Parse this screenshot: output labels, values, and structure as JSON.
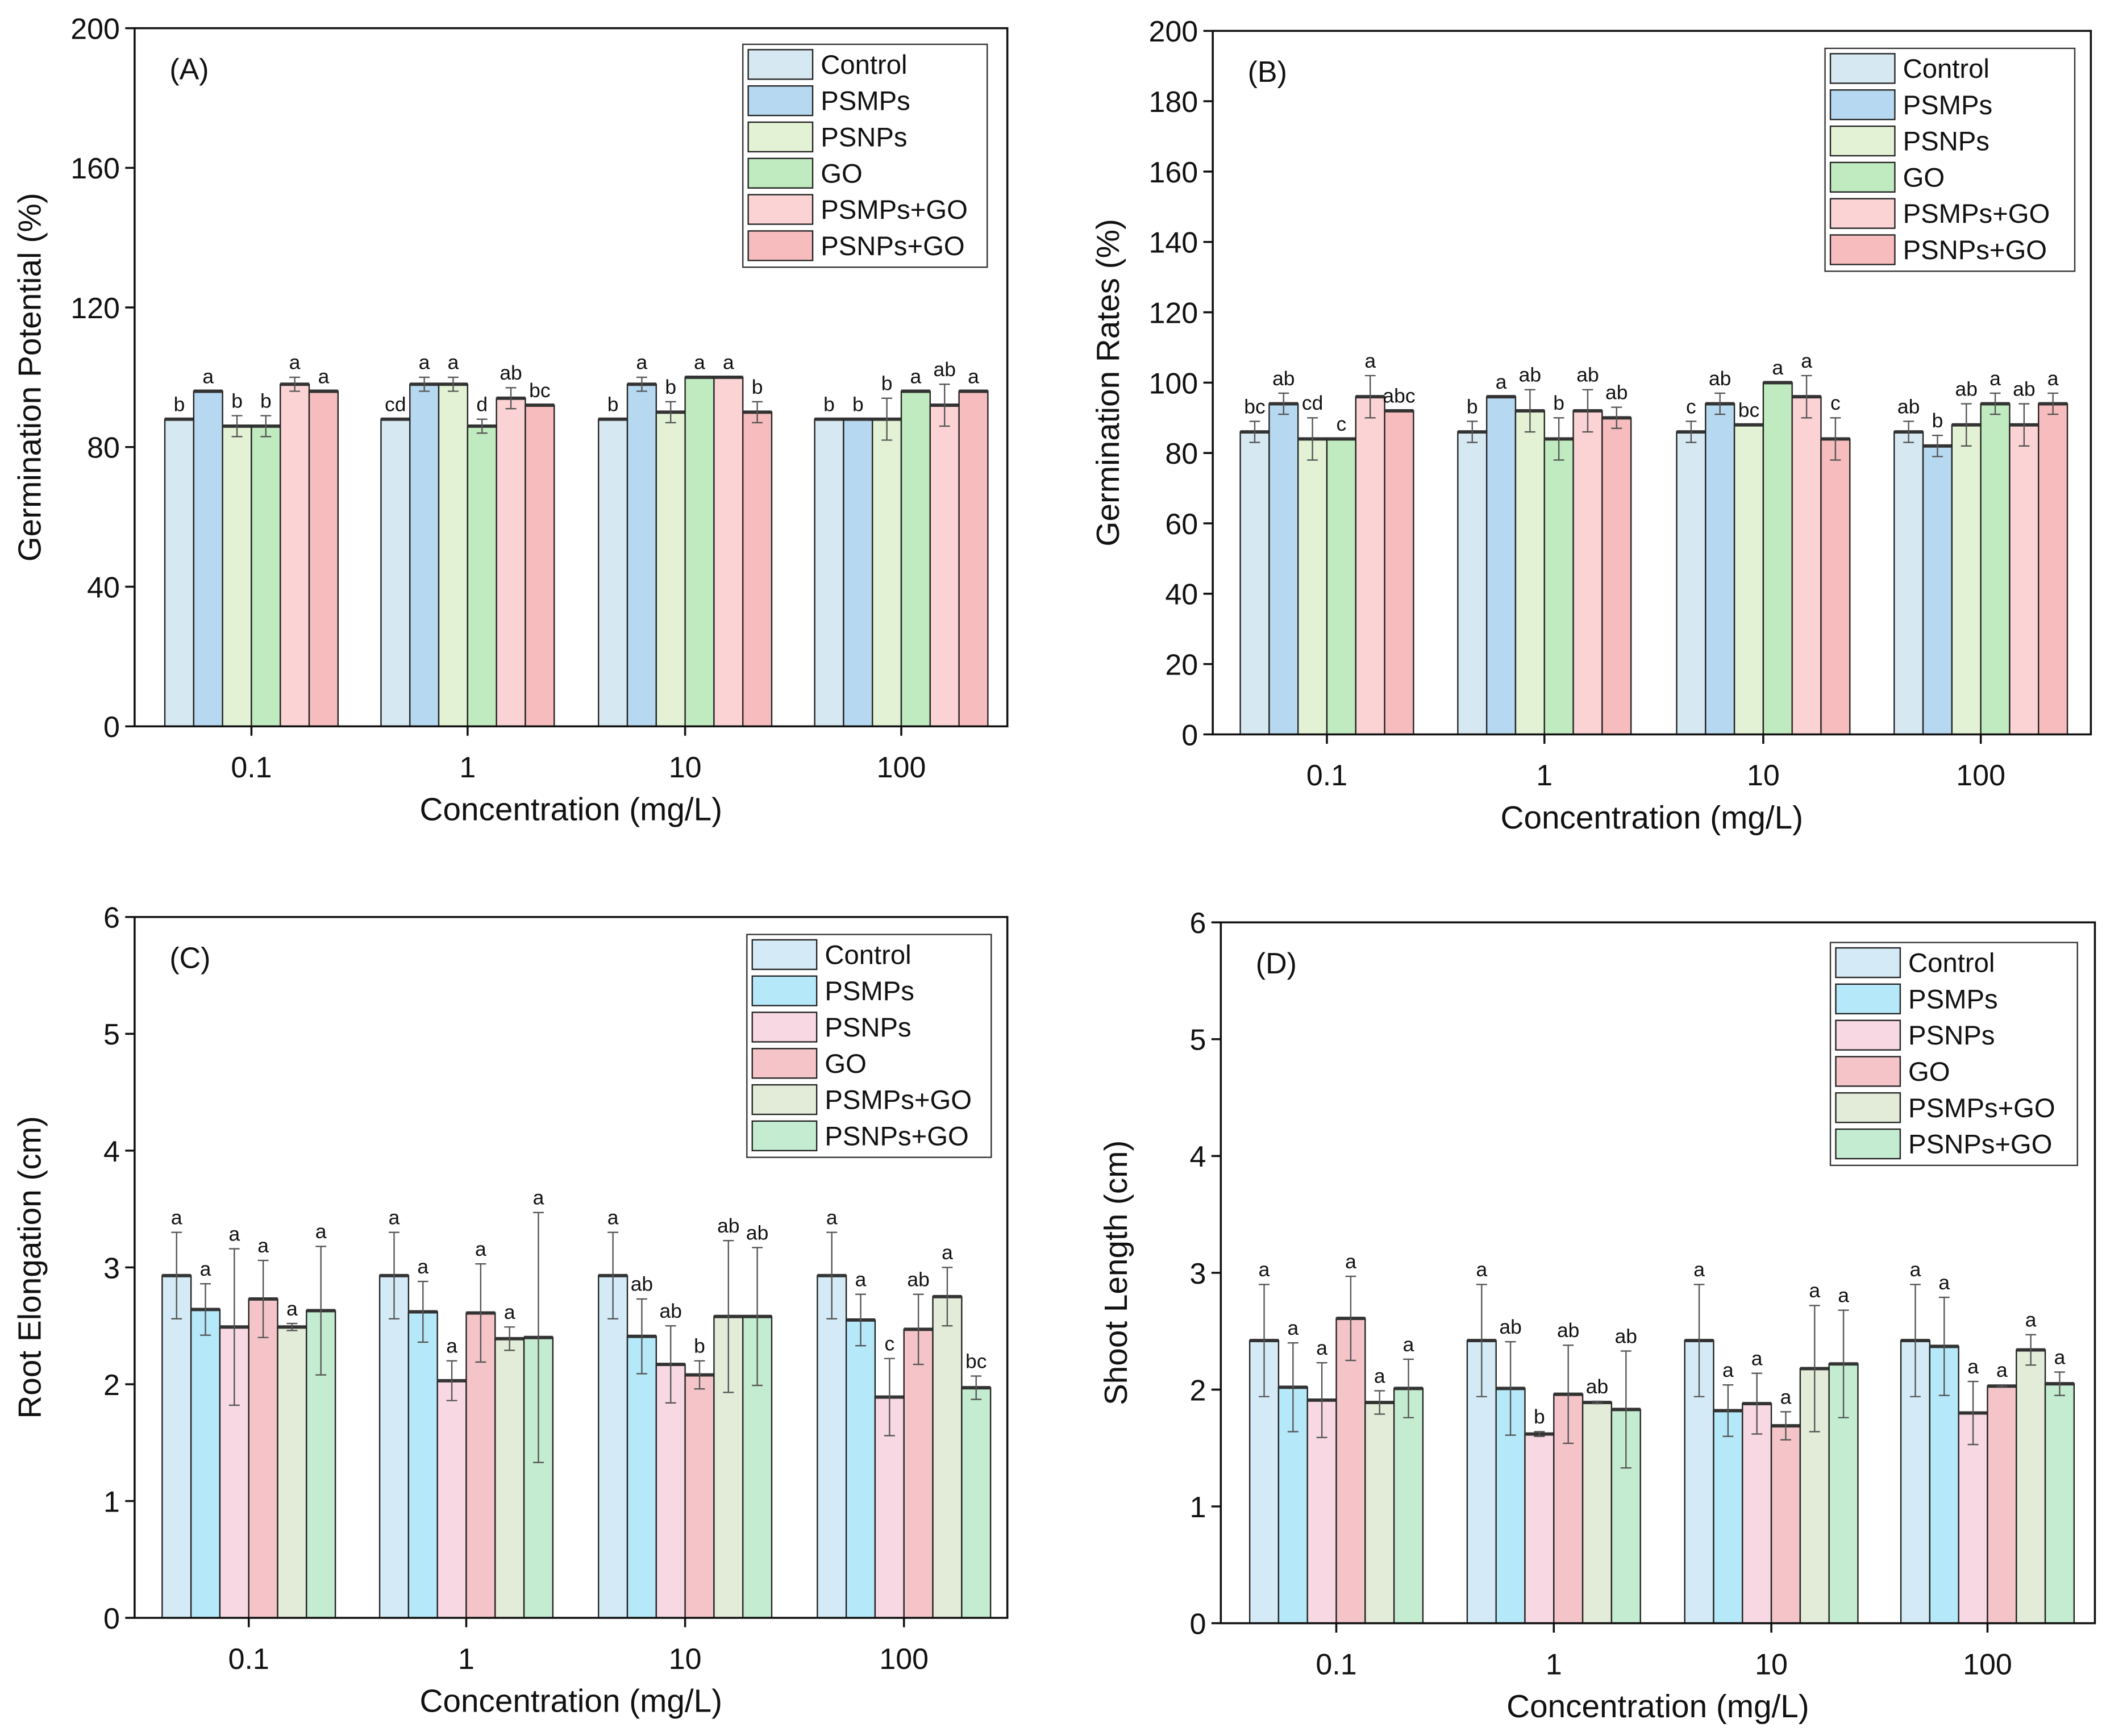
{
  "chart_data": [
    {
      "type": "bar",
      "panel_label": "(A)",
      "xlabel": "Concentration (mg/L)",
      "ylabel": "Germination Potential (%)",
      "ylim": [
        0,
        200
      ],
      "yticks": [
        0,
        40,
        80,
        120,
        160,
        200
      ],
      "categories": [
        "0.1",
        "1",
        "10",
        "100"
      ],
      "legend_position": "top-right",
      "series": [
        {
          "name": "Control",
          "color": "#d6e8f2",
          "values": [
            88,
            88,
            88,
            88
          ],
          "errors": [
            0,
            0,
            0,
            0
          ],
          "letters": [
            "b",
            "cd",
            "b",
            "b"
          ]
        },
        {
          "name": "PSMPs",
          "color": "#b6d8f0",
          "values": [
            96,
            98,
            98,
            88
          ],
          "errors": [
            0,
            2,
            2,
            0
          ],
          "letters": [
            "a",
            "a",
            "a",
            "b"
          ]
        },
        {
          "name": "PSNPs",
          "color": "#e3f2d4",
          "values": [
            86,
            98,
            90,
            88
          ],
          "errors": [
            3,
            2,
            3,
            6
          ],
          "letters": [
            "b",
            "a",
            "b",
            "b"
          ]
        },
        {
          "name": "GO",
          "color": "#c0ebc0",
          "values": [
            86,
            86,
            100,
            96
          ],
          "errors": [
            3,
            2,
            0,
            0
          ],
          "letters": [
            "b",
            "d",
            "a",
            "a"
          ]
        },
        {
          "name": "PSMPs+GO",
          "color": "#fcd3d5",
          "values": [
            98,
            94,
            100,
            92
          ],
          "errors": [
            2,
            3,
            0,
            6
          ],
          "letters": [
            "a",
            "ab",
            "a",
            "ab"
          ]
        },
        {
          "name": "PSNPs+GO",
          "color": "#f7bcbe",
          "values": [
            96,
            92,
            90,
            96
          ],
          "errors": [
            0,
            0,
            3,
            0
          ],
          "letters": [
            "a",
            "bc",
            "b",
            "a"
          ]
        }
      ]
    },
    {
      "type": "bar",
      "panel_label": "(B)",
      "xlabel": "Concentration (mg/L)",
      "ylabel": "Germination Rates (%)",
      "ylim": [
        0,
        200
      ],
      "yticks": [
        0,
        20,
        40,
        60,
        80,
        100,
        120,
        140,
        160,
        180,
        200
      ],
      "categories": [
        "0.1",
        "1",
        "10",
        "100"
      ],
      "legend_position": "top-right",
      "series": [
        {
          "name": "Control",
          "color": "#d6e8f2",
          "values": [
            86,
            86,
            86,
            86
          ],
          "errors": [
            3,
            3,
            3,
            3
          ],
          "letters": [
            "bc",
            "b",
            "c",
            "ab"
          ]
        },
        {
          "name": "PSMPs",
          "color": "#b6d8f0",
          "values": [
            94,
            96,
            94,
            82
          ],
          "errors": [
            3,
            0,
            3,
            3
          ],
          "letters": [
            "ab",
            "a",
            "ab",
            "b"
          ]
        },
        {
          "name": "PSNPs",
          "color": "#e3f2d4",
          "values": [
            84,
            92,
            88,
            88
          ],
          "errors": [
            6,
            6,
            0,
            6
          ],
          "letters": [
            "cd",
            "ab",
            "bc",
            "ab"
          ]
        },
        {
          "name": "GO",
          "color": "#c0ebc0",
          "values": [
            84,
            84,
            100,
            94
          ],
          "errors": [
            0,
            6,
            0,
            3
          ],
          "letters": [
            "c",
            "b",
            "a",
            "a"
          ]
        },
        {
          "name": "PSMPs+GO",
          "color": "#fcd3d5",
          "values": [
            96,
            92,
            96,
            88
          ],
          "errors": [
            6,
            6,
            6,
            6
          ],
          "letters": [
            "a",
            "ab",
            "a",
            "ab"
          ]
        },
        {
          "name": "PSNPs+GO",
          "color": "#f7bcbe",
          "values": [
            92,
            90,
            84,
            94
          ],
          "errors": [
            0,
            3,
            6,
            3
          ],
          "letters": [
            "abc",
            "ab",
            "c",
            "a"
          ]
        }
      ]
    },
    {
      "type": "bar",
      "panel_label": "(C)",
      "xlabel": "Concentration (mg/L)",
      "ylabel": "Root Elongation (cm)",
      "ylim": [
        0,
        6
      ],
      "yticks": [
        0,
        1,
        2,
        3,
        4,
        5,
        6
      ],
      "categories": [
        "0.1",
        "1",
        "10",
        "100"
      ],
      "legend_position": "top-right",
      "series": [
        {
          "name": "Control",
          "color": "#d4ebf7",
          "values": [
            2.93,
            2.93,
            2.93,
            2.93
          ],
          "errors": [
            0.37,
            0.37,
            0.37,
            0.37
          ],
          "letters": [
            "a",
            "a",
            "a",
            "a"
          ]
        },
        {
          "name": "PSMPs",
          "color": "#b5e8f9",
          "values": [
            2.64,
            2.62,
            2.41,
            2.55
          ],
          "errors": [
            0.22,
            0.26,
            0.32,
            0.22
          ],
          "letters": [
            "a",
            "a",
            "ab",
            "a"
          ]
        },
        {
          "name": "PSNPs",
          "color": "#f7d8e3",
          "values": [
            2.49,
            2.03,
            2.17,
            1.89
          ],
          "errors": [
            0.67,
            0.17,
            0.33,
            0.33
          ],
          "letters": [
            "a",
            "a",
            "ab",
            "c"
          ]
        },
        {
          "name": "GO",
          "color": "#f4c4c8",
          "values": [
            2.73,
            2.61,
            2.08,
            2.47
          ],
          "errors": [
            0.33,
            0.42,
            0.12,
            0.3
          ],
          "letters": [
            "a",
            "a",
            "b",
            "ab"
          ]
        },
        {
          "name": "PSMPs+GO",
          "color": "#e2ecd8",
          "values": [
            2.49,
            2.39,
            2.58,
            2.75
          ],
          "errors": [
            0.03,
            0.1,
            0.65,
            0.25
          ],
          "letters": [
            "a",
            "a",
            "ab",
            "a"
          ]
        },
        {
          "name": "PSNPs+GO",
          "color": "#c4ecd0",
          "values": [
            2.63,
            2.4,
            2.58,
            1.97
          ],
          "errors": [
            0.55,
            1.07,
            0.59,
            0.1
          ],
          "letters": [
            "a",
            "a",
            "ab",
            "bc"
          ]
        }
      ]
    },
    {
      "type": "bar",
      "panel_label": "(D)",
      "xlabel": "Concentration (mg/L)",
      "ylabel": "Shoot Length (cm)",
      "ylim": [
        0,
        6
      ],
      "yticks": [
        0,
        1,
        2,
        3,
        4,
        5,
        6
      ],
      "categories": [
        "0.1",
        "1",
        "10",
        "100"
      ],
      "legend_position": "top-right",
      "series": [
        {
          "name": "Control",
          "color": "#d4ebf7",
          "values": [
            2.42,
            2.42,
            2.42,
            2.42
          ],
          "errors": [
            0.48,
            0.48,
            0.48,
            0.48
          ],
          "letters": [
            "a",
            "a",
            "a",
            "a"
          ]
        },
        {
          "name": "PSMPs",
          "color": "#b5e8f9",
          "values": [
            2.02,
            2.01,
            1.82,
            2.37
          ],
          "errors": [
            0.38,
            0.4,
            0.22,
            0.42
          ],
          "letters": [
            "a",
            "ab",
            "a",
            "a"
          ]
        },
        {
          "name": "PSNPs",
          "color": "#f7d8e3",
          "values": [
            1.91,
            1.62,
            1.88,
            1.8
          ],
          "errors": [
            0.32,
            0.02,
            0.26,
            0.27
          ],
          "letters": [
            "a",
            "b",
            "a",
            "a"
          ]
        },
        {
          "name": "GO",
          "color": "#f4c4c8",
          "values": [
            2.61,
            1.96,
            1.69,
            2.03
          ],
          "errors": [
            0.36,
            0.42,
            0.12,
            0.01
          ],
          "letters": [
            "a",
            "ab",
            "a",
            "a"
          ]
        },
        {
          "name": "PSMPs+GO",
          "color": "#e2ecd8",
          "values": [
            1.89,
            1.89,
            2.18,
            2.34
          ],
          "errors": [
            0.1,
            0.01,
            0.54,
            0.13
          ],
          "letters": [
            "a",
            "ab",
            "a",
            "a"
          ]
        },
        {
          "name": "PSNPs+GO",
          "color": "#c4ecd0",
          "values": [
            2.01,
            1.83,
            2.22,
            2.05
          ],
          "errors": [
            0.25,
            0.5,
            0.46,
            0.1
          ],
          "letters": [
            "a",
            "ab",
            "a",
            "a"
          ]
        }
      ]
    }
  ]
}
